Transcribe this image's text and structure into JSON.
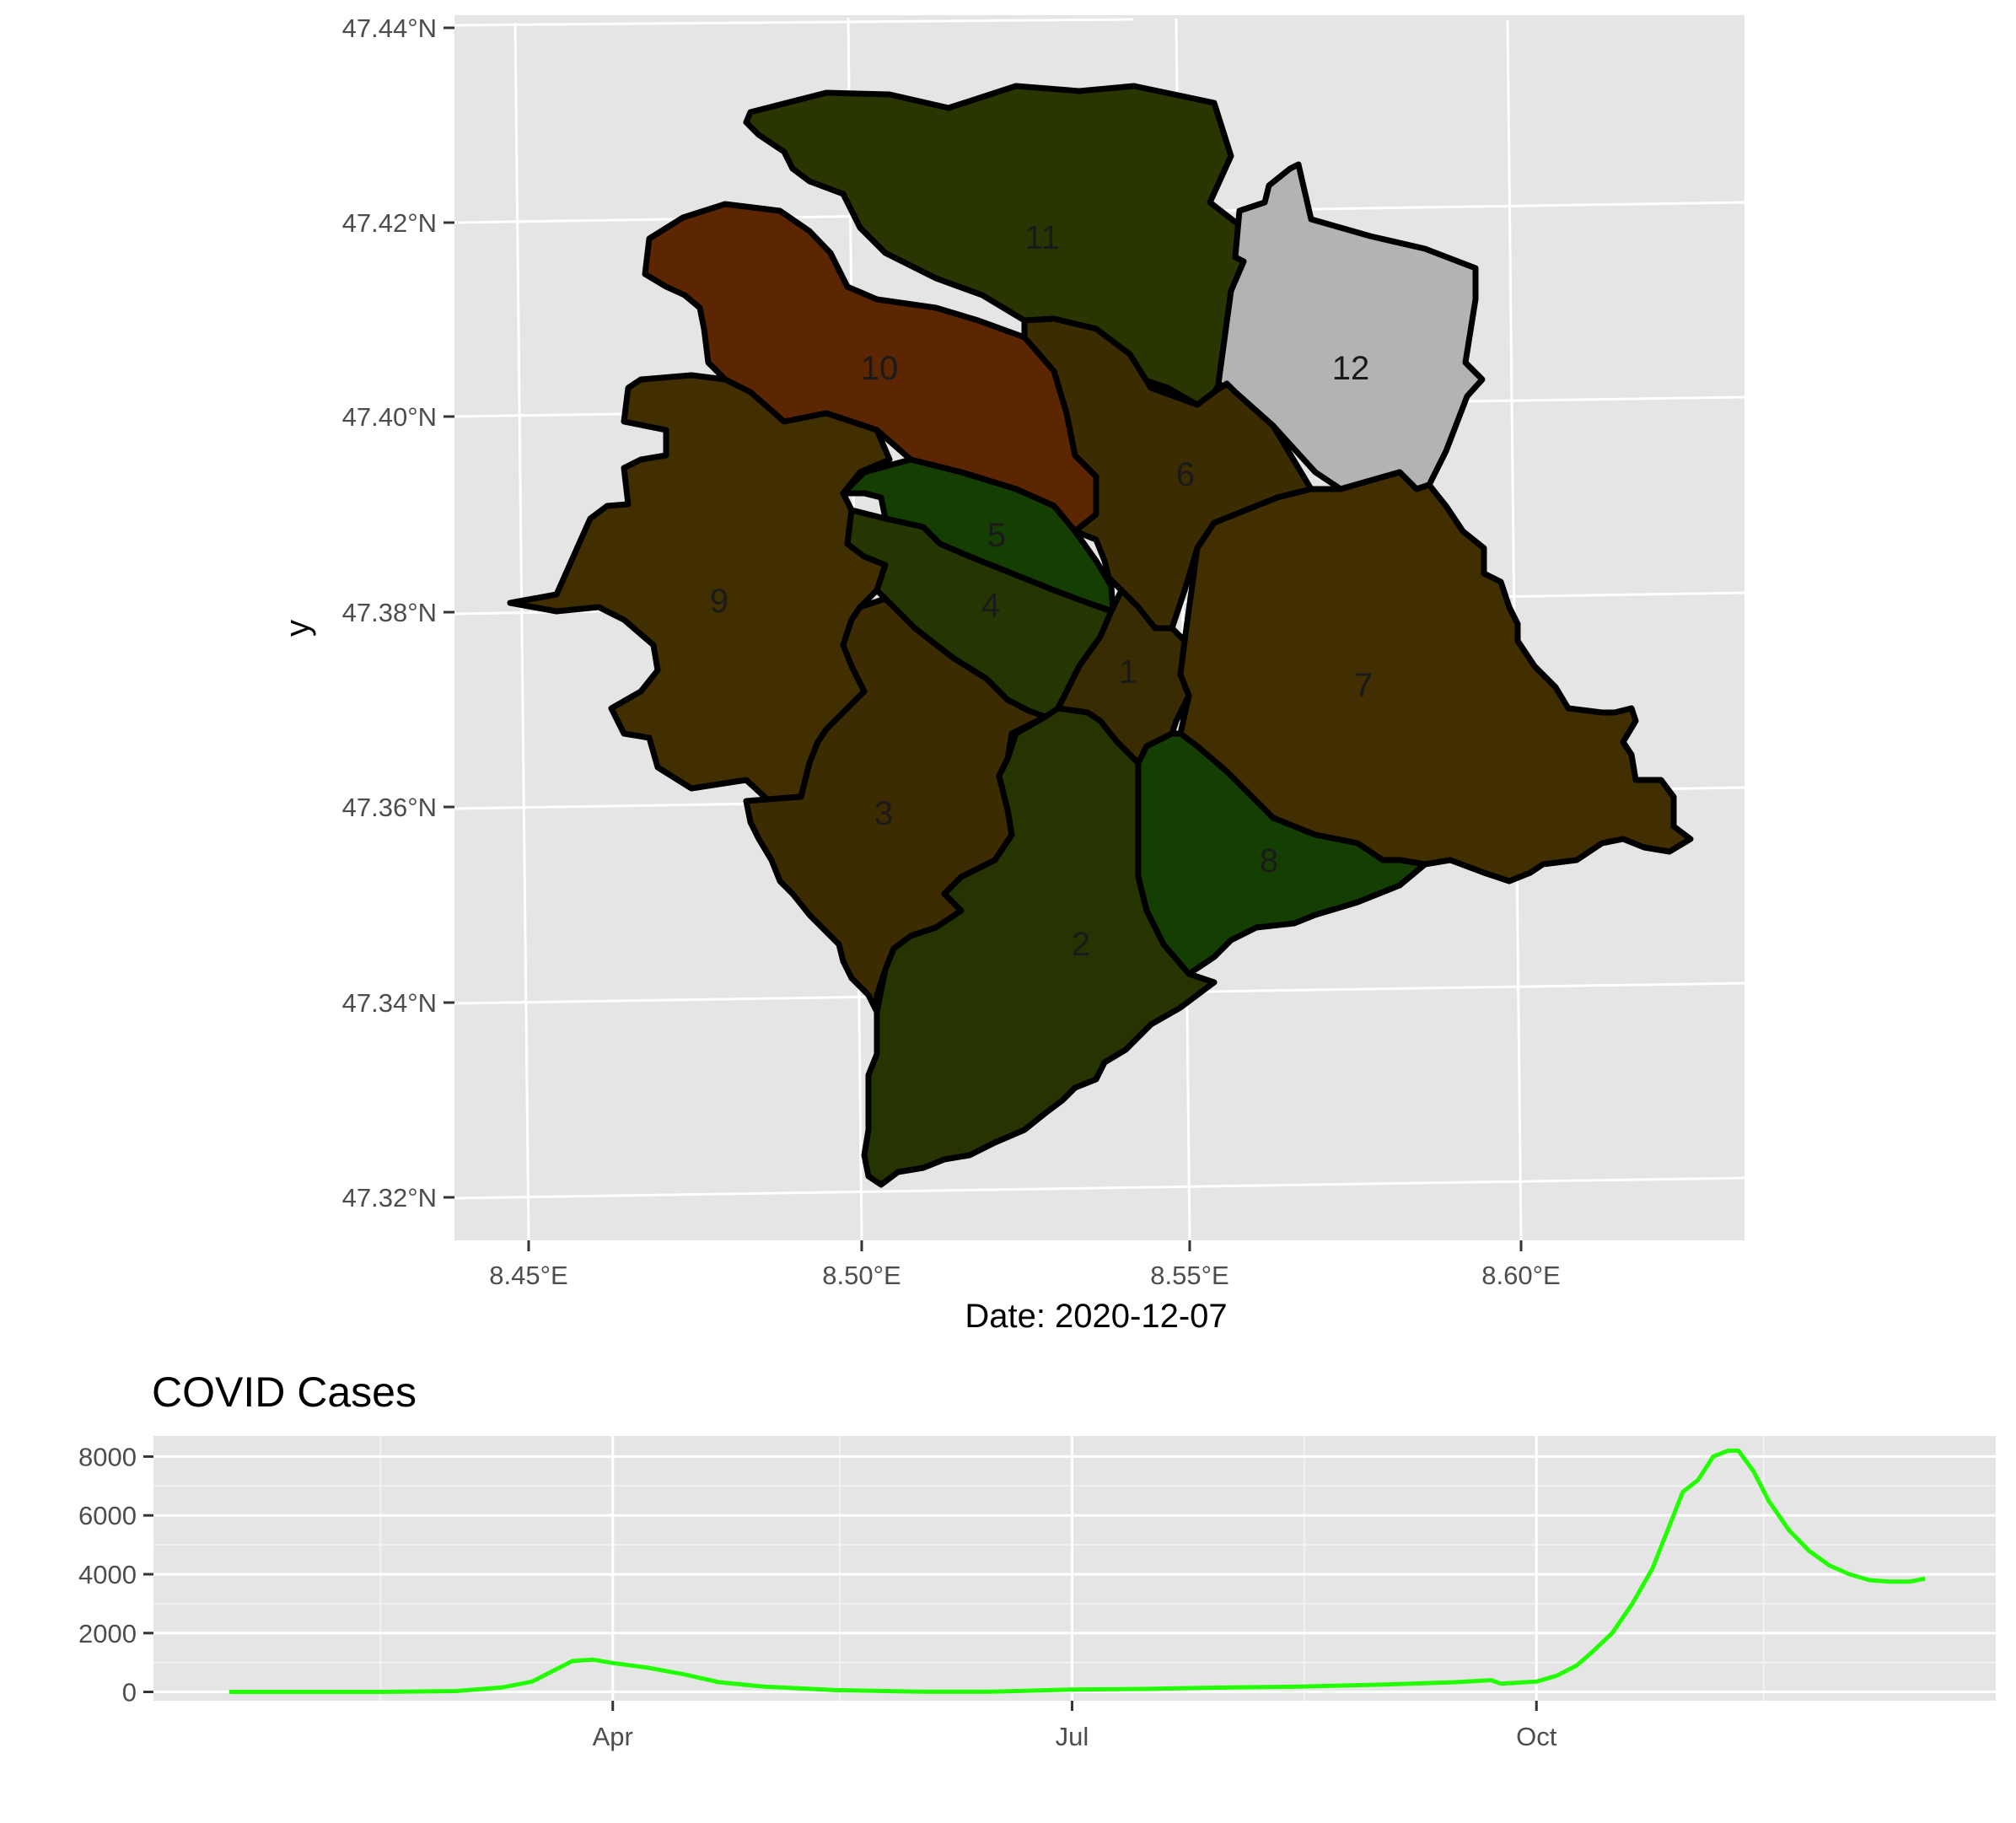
{
  "chart_data": [
    {
      "type": "choropleth-map",
      "xlabel": "Date:  2020-12-07",
      "ylabel": "y",
      "x_ticks": [
        "8.45°E",
        "8.50°E",
        "8.55°E",
        "8.60°E"
      ],
      "y_ticks": [
        "47.44°N",
        "47.42°N",
        "47.40°N",
        "47.38°N",
        "47.36°N",
        "47.34°N",
        "47.32°N"
      ],
      "x_tick_values": [
        8.45,
        8.5,
        8.55,
        8.6
      ],
      "y_tick_values": [
        47.44,
        47.42,
        47.4,
        47.38,
        47.36,
        47.34,
        47.32
      ],
      "xlim": [
        8.438,
        8.634
      ],
      "ylim": [
        47.315,
        47.44
      ],
      "grid": true,
      "regions": [
        {
          "label": "1",
          "fill": "#3a2c02"
        },
        {
          "label": "2",
          "fill": "#263401"
        },
        {
          "label": "3",
          "fill": "#3d2c02"
        },
        {
          "label": "4",
          "fill": "#253603"
        },
        {
          "label": "5",
          "fill": "#153e02"
        },
        {
          "label": "6",
          "fill": "#3c2c02"
        },
        {
          "label": "7",
          "fill": "#412e01"
        },
        {
          "label": "8",
          "fill": "#153f02"
        },
        {
          "label": "9",
          "fill": "#412f02"
        },
        {
          "label": "10",
          "fill": "#5c2602"
        },
        {
          "label": "11",
          "fill": "#293601"
        },
        {
          "label": "12",
          "fill": "#b3b3b3"
        }
      ]
    },
    {
      "type": "line",
      "title": "COVID Cases",
      "x_ticks": [
        "Apr",
        "Jul",
        "Oct"
      ],
      "x_tick_dates": [
        "2020-04-01",
        "2020-07-01",
        "2020-10-01"
      ],
      "x_range_dates": [
        "2020-01-01",
        "2020-12-31"
      ],
      "y_ticks": [
        "0",
        "2000",
        "4000",
        "6000",
        "8000"
      ],
      "y_tick_values": [
        0,
        2000,
        4000,
        6000,
        8000
      ],
      "ylim": [
        -300,
        8700
      ],
      "grid": true,
      "line_color": "#22ff00",
      "series": [
        {
          "x": [
            "2020-01-16",
            "2020-02-15",
            "2020-03-01",
            "2020-03-10",
            "2020-03-16",
            "2020-03-20",
            "2020-03-24",
            "2020-03-28",
            "2020-04-01",
            "2020-04-08",
            "2020-04-15",
            "2020-04-22",
            "2020-05-01",
            "2020-05-15",
            "2020-06-01",
            "2020-06-15",
            "2020-07-01",
            "2020-07-15",
            "2020-08-01",
            "2020-08-15",
            "2020-09-01",
            "2020-09-15",
            "2020-09-22",
            "2020-09-24",
            "2020-10-01",
            "2020-10-05",
            "2020-10-09",
            "2020-10-12",
            "2020-10-16",
            "2020-10-20",
            "2020-10-24",
            "2020-10-27",
            "2020-10-30",
            "2020-11-02",
            "2020-11-05",
            "2020-11-08",
            "2020-11-10",
            "2020-11-13",
            "2020-11-16",
            "2020-11-20",
            "2020-11-24",
            "2020-11-28",
            "2020-12-02",
            "2020-12-06",
            "2020-12-10",
            "2020-12-14",
            "2020-12-17"
          ],
          "y": [
            0,
            0,
            30,
            150,
            350,
            700,
            1050,
            1100,
            980,
            820,
            600,
            330,
            180,
            60,
            10,
            10,
            80,
            100,
            150,
            180,
            250,
            330,
            400,
            280,
            350,
            550,
            900,
            1350,
            2000,
            3000,
            4200,
            5500,
            6800,
            7200,
            8000,
            8200,
            8200,
            7500,
            6500,
            5500,
            4800,
            4300,
            4000,
            3800,
            3750,
            3750,
            3850
          ]
        }
      ]
    }
  ]
}
